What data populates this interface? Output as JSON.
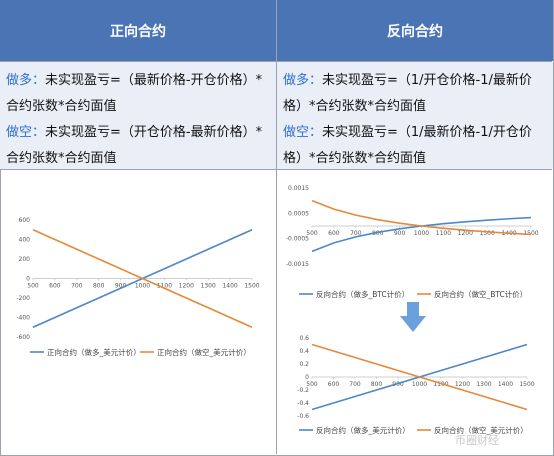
{
  "headers": {
    "left": "正向合约",
    "right": "反向合约"
  },
  "formulas": {
    "left": [
      {
        "kw": "做多：",
        "text": "未实现盈亏=（最新价格-开仓价格）*"
      },
      {
        "kw": "",
        "text": "合约张数*合约面值"
      },
      {
        "kw": "做空：",
        "text": "未实现盈亏=（开仓价格-最新价格）*"
      },
      {
        "kw": "",
        "text": "合约张数*合约面值"
      }
    ],
    "right": [
      {
        "kw": "做多：",
        "text": "未实现盈亏=（1/开仓价格-1/最新价"
      },
      {
        "kw": "",
        "text": "格）*合约张数*合约面值"
      },
      {
        "kw": "做空：",
        "text": "未实现盈亏=（1/最新价格-1/开仓价"
      },
      {
        "kw": "",
        "text": "格）*合约张数*合约面值"
      }
    ]
  },
  "colors": {
    "header_bg": "#4a74b3",
    "formula_bg": "#e9eef7",
    "keyword": "#2f6fd1",
    "long": "#4f86c6",
    "short": "#e6883a",
    "arrow": "#6aa0de"
  },
  "chart_data": [
    {
      "type": "line",
      "x": [
        500,
        600,
        700,
        800,
        900,
        1000,
        1100,
        1200,
        1300,
        1400,
        1500
      ],
      "xticks": [
        "500",
        "600",
        "700",
        "800",
        "900",
        "1000",
        "1100",
        "1200",
        "1300",
        "1400",
        "1500"
      ],
      "yticks": [
        -600,
        -400,
        -200,
        0,
        200,
        400,
        600
      ],
      "ytick_labels": [
        "-600",
        "-400",
        "-200",
        "0",
        "200",
        "400",
        "600"
      ],
      "ylim": [
        -600,
        600
      ],
      "series": [
        {
          "name": "正向合约（做多_美元计价）",
          "values": [
            -500,
            -400,
            -300,
            -200,
            -100,
            0,
            100,
            200,
            300,
            400,
            500
          ]
        },
        {
          "name": "正向合约（做空_美元计价）",
          "values": [
            500,
            400,
            300,
            200,
            100,
            0,
            -100,
            -200,
            -300,
            -400,
            -500
          ]
        }
      ],
      "legend": "bottom"
    },
    {
      "type": "line",
      "x": [
        500,
        600,
        700,
        800,
        900,
        1000,
        1100,
        1200,
        1300,
        1400,
        1500
      ],
      "xticks": [
        "500",
        "600",
        "700",
        "800",
        "900",
        "1000",
        "1100",
        "1200",
        "1300",
        "1400",
        "1500"
      ],
      "yticks": [
        -0.0015,
        -0.0005,
        0.0005,
        0.0015
      ],
      "ytick_labels": [
        "-0.0015",
        "-0.0005",
        "0.0005",
        "0.0015"
      ],
      "ylim": [
        -0.0015,
        0.0015
      ],
      "series": [
        {
          "name": "反向合约（做多_BTC计价）",
          "values": [
            -0.001,
            -0.000667,
            -0.000429,
            -0.00025,
            -0.000111,
            0,
            9.09e-05,
            0.000167,
            0.000231,
            0.000286,
            0.000333
          ]
        },
        {
          "name": "反向合约（做空_BTC计价）",
          "values": [
            0.001,
            0.000667,
            0.000429,
            0.00025,
            0.000111,
            0,
            -9.09e-05,
            -0.000167,
            -0.000231,
            -0.000286,
            -0.000333
          ]
        }
      ],
      "legend": "bottom"
    },
    {
      "type": "line",
      "x": [
        500,
        600,
        700,
        800,
        900,
        1000,
        1100,
        1200,
        1300,
        1400,
        1500
      ],
      "xticks": [
        "500",
        "600",
        "700",
        "800",
        "900",
        "1000",
        "1100",
        "1200",
        "1300",
        "1400",
        "1500"
      ],
      "yticks": [
        -0.6,
        -0.4,
        -0.2,
        0,
        0.2,
        0.4,
        0.6
      ],
      "ytick_labels": [
        "-0.6",
        "-0.4",
        "-0.2",
        "0",
        "0.2",
        "0.4",
        "0.6"
      ],
      "ylim": [
        -0.6,
        0.6
      ],
      "series": [
        {
          "name": "反向合约（做多_美元计价）",
          "values": [
            -0.5,
            -0.4,
            -0.3,
            -0.2,
            -0.1,
            0,
            0.1,
            0.2,
            0.3,
            0.4,
            0.5
          ]
        },
        {
          "name": "反向合约（做空_美元计价）",
          "values": [
            0.5,
            0.4,
            0.3,
            0.2,
            0.1,
            0,
            -0.1,
            -0.2,
            -0.3,
            -0.4,
            -0.5
          ]
        }
      ],
      "legend": "bottom"
    }
  ],
  "watermark": "币圈财经"
}
